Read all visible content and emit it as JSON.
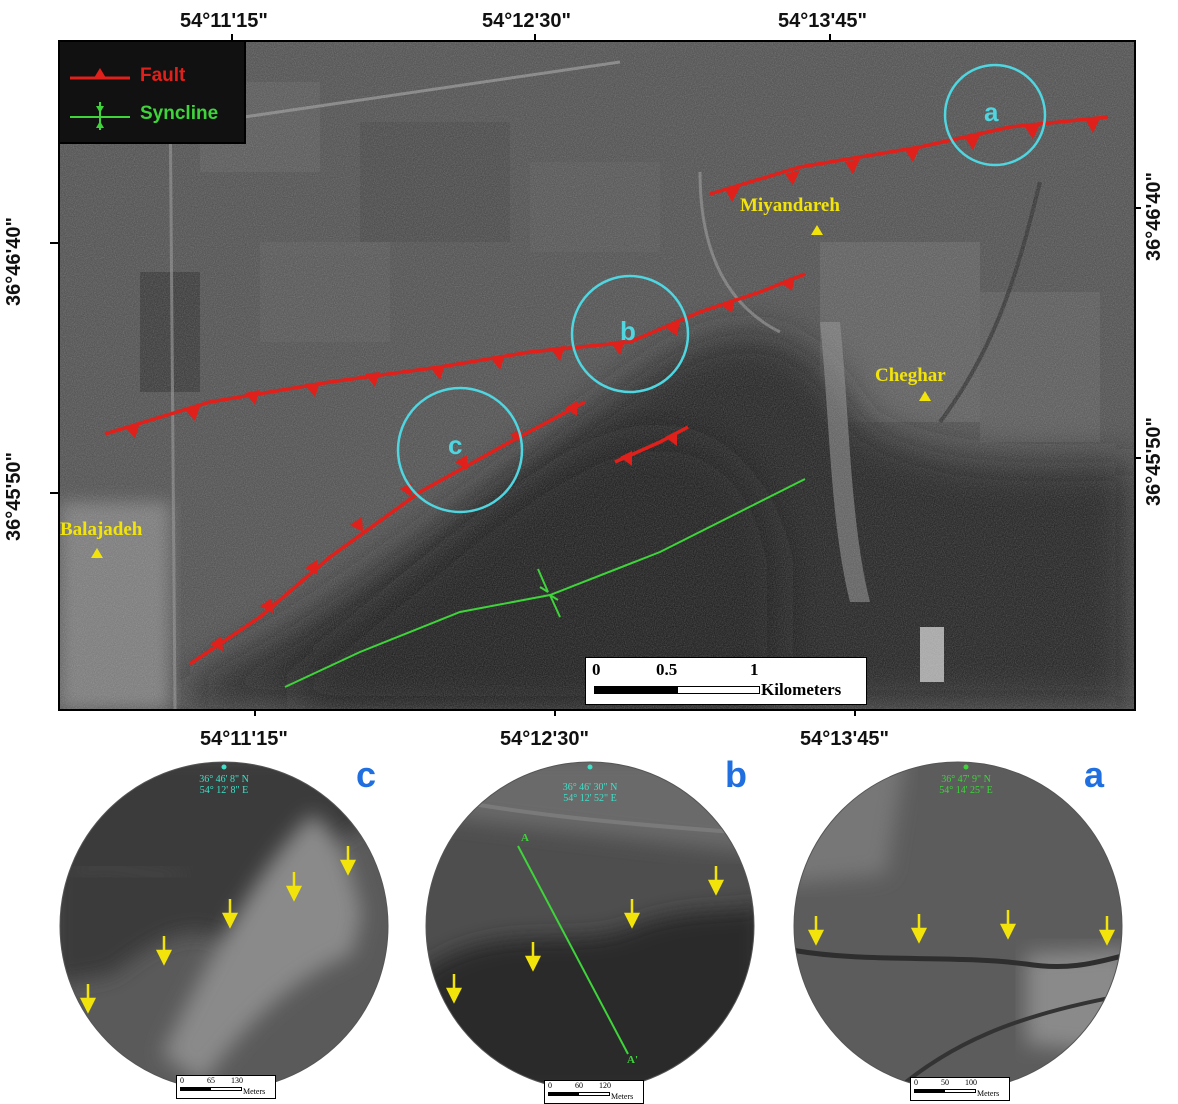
{
  "top_coords": [
    "54°11'15\"",
    "54°12'30\"",
    "54°13'45\""
  ],
  "bottom_coords": [
    "54°11'15\"",
    "54°12'30\"",
    "54°13'45\""
  ],
  "left_coords": [
    "36°46'40\"",
    "36°45'50\""
  ],
  "right_coords": [
    "36°46'40\"",
    "36°45'50\""
  ],
  "legend": {
    "fault_label": "Fault",
    "syncline_label": "Syncline",
    "fault_color": "#e0201a",
    "syncline_color": "#3ed43a"
  },
  "places": {
    "miyandareh": "Miyandareh",
    "cheghar": "Cheghar",
    "balajadeh": "Balajadeh"
  },
  "circles": {
    "a": "a",
    "b": "b",
    "c": "c",
    "color": "#4fd6e0"
  },
  "scalebar": {
    "ticks": [
      "0",
      "0.5",
      "1"
    ],
    "unit": "Kilometers"
  },
  "insets": [
    {
      "letter": "c",
      "coord_lat": "36° 46' 8\" N",
      "coord_lon": "54° 12' 8\" E",
      "coord_color": "#3fe0c8",
      "scale_ticks": [
        "0",
        "65",
        "130"
      ],
      "scale_unit": "Meters"
    },
    {
      "letter": "b",
      "coord_lat": "36° 46' 30\" N",
      "coord_lon": "54° 12' 52\" E",
      "coord_color": "#3fe0c8",
      "profile_start": "A",
      "profile_end": "A'",
      "scale_ticks": [
        "0",
        "60",
        "120"
      ],
      "scale_unit": "Meters"
    },
    {
      "letter": "a",
      "coord_lat": "36° 47' 9\" N",
      "coord_lon": "54° 14' 25\" E",
      "coord_color": "#3ed43a",
      "scale_ticks": [
        "0",
        "50",
        "100"
      ],
      "scale_unit": "Meters"
    }
  ]
}
